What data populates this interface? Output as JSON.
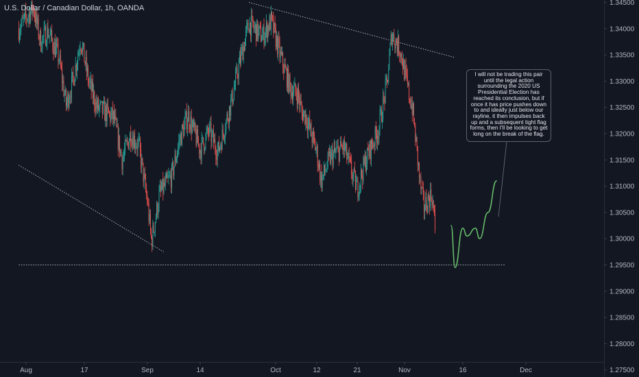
{
  "header": {
    "title": "U.S. Dollar / Canadian Dollar, 1h, OANDA"
  },
  "annotation": {
    "text": "I will not be trading this pair until the legal action surrounding the 2020 US Presidential Election has reached its conclusion, but if once it has price pushes down to and ideally just below our rayline, it then impulses back up and a subsequent tight flag forms, then I'll be looking to get long on the break of the flag."
  },
  "chart_data": {
    "type": "line",
    "title": "U.S. Dollar / Canadian Dollar, 1h, OANDA",
    "xlabel": "",
    "ylabel": "",
    "x_ticks": [
      "Aug",
      "17",
      "Sep",
      "14",
      "Oct",
      "12",
      "21",
      "Nov",
      "16",
      "Dec"
    ],
    "y_ticks": [
      "1.34500",
      "1.34000",
      "1.33500",
      "1.33000",
      "1.32500",
      "1.32000",
      "1.31500",
      "1.31000",
      "1.30500",
      "1.30000",
      "1.29500",
      "1.29000",
      "1.28500",
      "1.28000",
      "1.27500"
    ],
    "ylim": [
      1.2745,
      1.3465
    ],
    "grid": false,
    "up_color": "#26a69a",
    "down_color": "#ef5350",
    "price_path": [
      [
        "Jul 30",
        1.34
      ],
      [
        "Aug 3",
        1.344
      ],
      [
        "Aug 5",
        1.3375
      ],
      [
        "Aug 7",
        1.3395
      ],
      [
        "Aug 10",
        1.3345
      ],
      [
        "Aug 12",
        1.3255
      ],
      [
        "Aug 14",
        1.3305
      ],
      [
        "Aug 16",
        1.338
      ],
      [
        "Aug 18",
        1.33
      ],
      [
        "Aug 20",
        1.325
      ],
      [
        "Aug 24",
        1.323
      ],
      [
        "Aug 26",
        1.315
      ],
      [
        "Aug 28",
        1.32
      ],
      [
        "Aug 30",
        1.3175
      ],
      [
        "Sep 1",
        1.307
      ],
      [
        "Sep 2",
        1.2995
      ],
      [
        "Sep 4",
        1.3085
      ],
      [
        "Sep 7",
        1.312
      ],
      [
        "Sep 9",
        1.319
      ],
      [
        "Sep 11",
        1.3235
      ],
      [
        "Sep 14",
        1.317
      ],
      [
        "Sep 16",
        1.3205
      ],
      [
        "Sep 18",
        1.3165
      ],
      [
        "Sep 21",
        1.326
      ],
      [
        "Sep 23",
        1.334
      ],
      [
        "Sep 25",
        1.341
      ],
      [
        "Sep 28",
        1.3385
      ],
      [
        "Sep 30",
        1.3415
      ],
      [
        "Oct 2",
        1.3355
      ],
      [
        "Oct 5",
        1.3285
      ],
      [
        "Oct 7",
        1.3275
      ],
      [
        "Oct 8",
        1.324
      ],
      [
        "Oct 9",
        1.3235
      ],
      [
        "Oct 12",
        1.3165
      ],
      [
        "Oct 13",
        1.311
      ],
      [
        "Oct 15",
        1.3155
      ],
      [
        "Oct 18",
        1.3175
      ],
      [
        "Oct 20",
        1.312
      ],
      [
        "Oct 21",
        1.3095
      ],
      [
        "Oct 23",
        1.315
      ],
      [
        "Oct 26",
        1.321
      ],
      [
        "Oct 28",
        1.33
      ],
      [
        "Oct 29",
        1.339
      ],
      [
        "Oct 31",
        1.336
      ],
      [
        "Nov 2",
        1.328
      ],
      [
        "Nov 3",
        1.325
      ],
      [
        "Nov 4",
        1.318
      ],
      [
        "Nov 5",
        1.3105
      ],
      [
        "Nov 6",
        1.306
      ],
      [
        "Nov 8",
        1.3085
      ],
      [
        "Nov 9",
        1.301
      ]
    ],
    "projection_path": [
      [
        "Nov 13",
        1.3025
      ],
      [
        "Nov 14",
        1.2945
      ],
      [
        "Nov 16",
        1.302
      ],
      [
        "Nov 17",
        1.3005
      ],
      [
        "Nov 19",
        1.302
      ],
      [
        "Nov 20",
        1.3
      ],
      [
        "Nov 22",
        1.305
      ],
      [
        "Nov 24",
        1.311
      ]
    ],
    "trendlines": [
      {
        "from": [
          "Jul 30",
          1.314
        ],
        "to": [
          "Sep 5",
          1.2975
        ]
      },
      {
        "from": [
          "Sep 25",
          1.345
        ],
        "to": [
          "Nov 14",
          1.3345
        ]
      },
      {
        "from": [
          "Jul 30",
          1.295
        ],
        "to": [
          "Nov 26",
          1.295
        ]
      }
    ]
  }
}
